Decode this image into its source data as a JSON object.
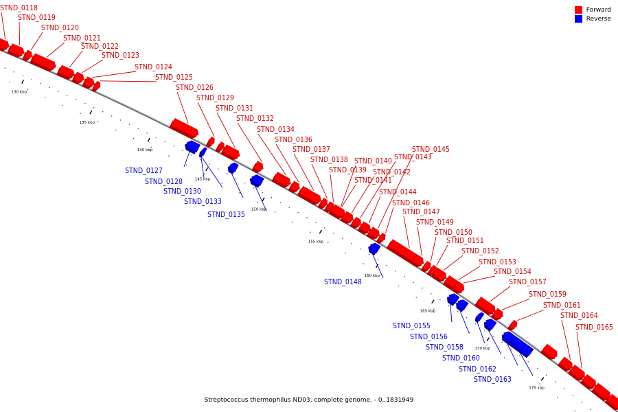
{
  "legend": {
    "items": [
      {
        "label": "Forward",
        "color": "#ff0000"
      },
      {
        "label": "Reverse",
        "color": "#0000ff"
      }
    ]
  },
  "caption": "Streptococcus thermophilus ND03, complete genome. - 0..1831949",
  "colors": {
    "forward": "#ff0000",
    "forward_dark": "#b20000",
    "reverse": "#0000ff",
    "reverse_dark": "#0000aa",
    "forward_label": "#cc0000",
    "reverse_label": "#0000cc",
    "backbone": "#707070"
  },
  "ticks": [
    {
      "label": "130 kbp"
    },
    {
      "label": "135 kbp"
    },
    {
      "label": "140 kbp"
    },
    {
      "label": "145 kbp"
    },
    {
      "label": "150 kbp"
    },
    {
      "label": "155 kbp"
    },
    {
      "label": "160 kbp"
    },
    {
      "label": "165 kbp"
    },
    {
      "label": "170 kbp"
    },
    {
      "label": "175 kbp"
    }
  ],
  "genes": [
    {
      "name": "STND_0118",
      "strand": "forward"
    },
    {
      "name": "STND_0119",
      "strand": "forward"
    },
    {
      "name": "STND_0120",
      "strand": "forward"
    },
    {
      "name": "STND_0121",
      "strand": "forward"
    },
    {
      "name": "STND_0122",
      "strand": "forward"
    },
    {
      "name": "STND_0123",
      "strand": "forward"
    },
    {
      "name": "STND_0124",
      "strand": "forward"
    },
    {
      "name": "STND_0125",
      "strand": "forward"
    },
    {
      "name": "STND_0126",
      "strand": "forward"
    },
    {
      "name": "STND_0127",
      "strand": "reverse"
    },
    {
      "name": "STND_0128",
      "strand": "reverse"
    },
    {
      "name": "STND_0129",
      "strand": "forward"
    },
    {
      "name": "STND_0130",
      "strand": "reverse"
    },
    {
      "name": "STND_0131",
      "strand": "forward"
    },
    {
      "name": "STND_0132",
      "strand": "forward"
    },
    {
      "name": "STND_0133",
      "strand": "reverse"
    },
    {
      "name": "STND_0134",
      "strand": "forward"
    },
    {
      "name": "STND_0135",
      "strand": "reverse"
    },
    {
      "name": "STND_0136",
      "strand": "forward"
    },
    {
      "name": "STND_0137",
      "strand": "forward"
    },
    {
      "name": "STND_0138",
      "strand": "forward"
    },
    {
      "name": "STND_0139",
      "strand": "forward"
    },
    {
      "name": "STND_0140",
      "strand": "forward"
    },
    {
      "name": "STND_0141",
      "strand": "forward"
    },
    {
      "name": "STND_0142",
      "strand": "forward"
    },
    {
      "name": "STND_0143",
      "strand": "forward"
    },
    {
      "name": "STND_0144",
      "strand": "forward"
    },
    {
      "name": "STND_0145",
      "strand": "forward"
    },
    {
      "name": "STND_0146",
      "strand": "forward"
    },
    {
      "name": "STND_0147",
      "strand": "forward"
    },
    {
      "name": "STND_0148",
      "strand": "reverse"
    },
    {
      "name": "STND_0149",
      "strand": "forward"
    },
    {
      "name": "STND_0150",
      "strand": "forward"
    },
    {
      "name": "STND_0151",
      "strand": "forward"
    },
    {
      "name": "STND_0152",
      "strand": "forward"
    },
    {
      "name": "STND_0153",
      "strand": "forward"
    },
    {
      "name": "STND_0154",
      "strand": "forward"
    },
    {
      "name": "STND_0155",
      "strand": "reverse"
    },
    {
      "name": "STND_0156",
      "strand": "reverse"
    },
    {
      "name": "STND_0157",
      "strand": "forward"
    },
    {
      "name": "STND_0158",
      "strand": "reverse"
    },
    {
      "name": "STND_0159",
      "strand": "forward"
    },
    {
      "name": "STND_0160",
      "strand": "reverse"
    },
    {
      "name": "STND_0161",
      "strand": "forward"
    },
    {
      "name": "STND_0162",
      "strand": "reverse"
    },
    {
      "name": "STND_0163",
      "strand": "reverse"
    },
    {
      "name": "STND_0164",
      "strand": "forward"
    },
    {
      "name": "STND_0165",
      "strand": "forward"
    }
  ]
}
